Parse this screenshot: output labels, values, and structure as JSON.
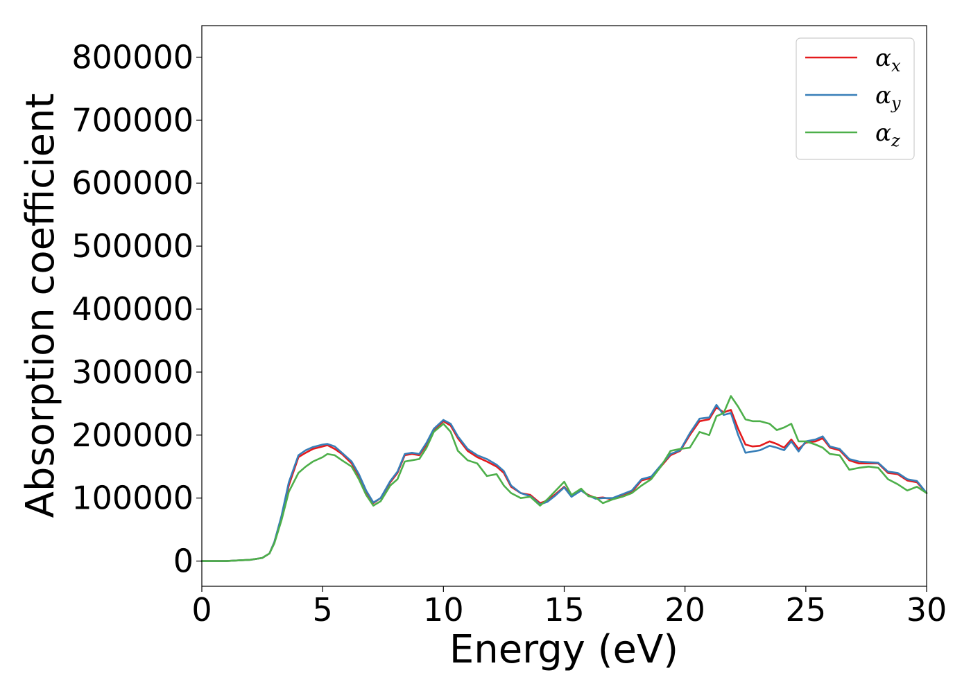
{
  "chart_data": {
    "type": "line",
    "title": "",
    "xlabel": "Energy (eV)",
    "ylabel": "Absorption coefficient",
    "xlim": [
      0,
      30
    ],
    "ylim": [
      -40000,
      850000
    ],
    "x_ticks": [
      0,
      5,
      10,
      15,
      20,
      25,
      30
    ],
    "y_ticks": [
      0,
      100000,
      200000,
      300000,
      400000,
      500000,
      600000,
      700000,
      800000
    ],
    "x_tick_labels": [
      "0",
      "5",
      "10",
      "15",
      "20",
      "25",
      "30"
    ],
    "y_tick_labels": [
      "0",
      "100000",
      "200000",
      "300000",
      "400000",
      "500000",
      "600000",
      "700000",
      "800000"
    ],
    "grid": false,
    "legend_position": "top-right",
    "x": [
      0,
      1,
      2,
      2.5,
      2.8,
      3.0,
      3.3,
      3.6,
      4.0,
      4.3,
      4.6,
      5.0,
      5.2,
      5.5,
      5.8,
      6.2,
      6.5,
      6.8,
      7.1,
      7.4,
      7.8,
      8.1,
      8.4,
      8.7,
      9.0,
      9.3,
      9.6,
      10.0,
      10.3,
      10.6,
      11.0,
      11.4,
      11.8,
      12.2,
      12.5,
      12.8,
      13.2,
      13.6,
      14.0,
      14.3,
      14.6,
      15.0,
      15.3,
      15.7,
      16.0,
      16.3,
      16.6,
      17.0,
      17.4,
      17.8,
      18.2,
      18.6,
      19.0,
      19.4,
      19.8,
      20.2,
      20.6,
      21.0,
      21.3,
      21.6,
      21.9,
      22.2,
      22.5,
      22.8,
      23.1,
      23.5,
      23.8,
      24.1,
      24.4,
      24.7,
      25.0,
      25.4,
      25.7,
      26.0,
      26.4,
      26.8,
      27.2,
      27.6,
      28.0,
      28.4,
      28.8,
      29.2,
      29.6,
      30.0
    ],
    "series": [
      {
        "name": "α_x",
        "color": "#e41a1c",
        "values": [
          0,
          0,
          2000,
          5000,
          12000,
          30000,
          70000,
          120000,
          165000,
          172000,
          178000,
          182000,
          184000,
          178000,
          170000,
          155000,
          135000,
          110000,
          92000,
          100000,
          125000,
          140000,
          168000,
          170000,
          168000,
          185000,
          208000,
          222000,
          215000,
          195000,
          175000,
          165000,
          158000,
          150000,
          140000,
          118000,
          108000,
          105000,
          92000,
          96000,
          105000,
          118000,
          104000,
          112000,
          105000,
          100000,
          101000,
          98000,
          105000,
          110000,
          128000,
          132000,
          150000,
          168000,
          175000,
          200000,
          222000,
          225000,
          244000,
          236000,
          240000,
          210000,
          185000,
          182000,
          183000,
          190000,
          186000,
          180000,
          193000,
          178000,
          188000,
          190000,
          195000,
          180000,
          176000,
          160000,
          155000,
          155000,
          155000,
          140000,
          138000,
          128000,
          125000,
          108000
        ]
      },
      {
        "name": "α_y",
        "color": "#377eb8",
        "values": [
          0,
          0,
          2000,
          5000,
          12000,
          30000,
          72000,
          125000,
          168000,
          176000,
          181000,
          185000,
          186000,
          182000,
          172000,
          158000,
          138000,
          112000,
          93000,
          100000,
          127000,
          142000,
          170000,
          172000,
          170000,
          188000,
          210000,
          224000,
          218000,
          198000,
          178000,
          168000,
          162000,
          153000,
          143000,
          120000,
          108000,
          103000,
          90000,
          94000,
          103000,
          117000,
          102000,
          112000,
          104000,
          99000,
          100000,
          100000,
          106000,
          112000,
          130000,
          134000,
          152000,
          170000,
          176000,
          203000,
          226000,
          228000,
          248000,
          232000,
          235000,
          200000,
          172000,
          174000,
          176000,
          183000,
          180000,
          176000,
          190000,
          174000,
          190000,
          193000,
          198000,
          182000,
          178000,
          162000,
          158000,
          157000,
          156000,
          142000,
          140000,
          130000,
          127000,
          108000
        ]
      },
      {
        "name": "α_z",
        "color": "#4daf4a",
        "values": [
          0,
          0,
          2000,
          5000,
          12000,
          28000,
          65000,
          110000,
          140000,
          150000,
          158000,
          165000,
          170000,
          168000,
          160000,
          150000,
          130000,
          105000,
          88000,
          95000,
          120000,
          130000,
          158000,
          160000,
          162000,
          180000,
          205000,
          218000,
          205000,
          175000,
          160000,
          155000,
          135000,
          138000,
          120000,
          108000,
          100000,
          102000,
          88000,
          98000,
          110000,
          126000,
          105000,
          115000,
          103000,
          101000,
          92000,
          98000,
          102000,
          108000,
          120000,
          130000,
          150000,
          175000,
          178000,
          180000,
          205000,
          200000,
          230000,
          235000,
          262000,
          245000,
          225000,
          222000,
          222000,
          218000,
          208000,
          212000,
          218000,
          190000,
          190000,
          185000,
          180000,
          170000,
          168000,
          145000,
          148000,
          150000,
          148000,
          130000,
          122000,
          112000,
          118000,
          108000
        ]
      }
    ]
  }
}
